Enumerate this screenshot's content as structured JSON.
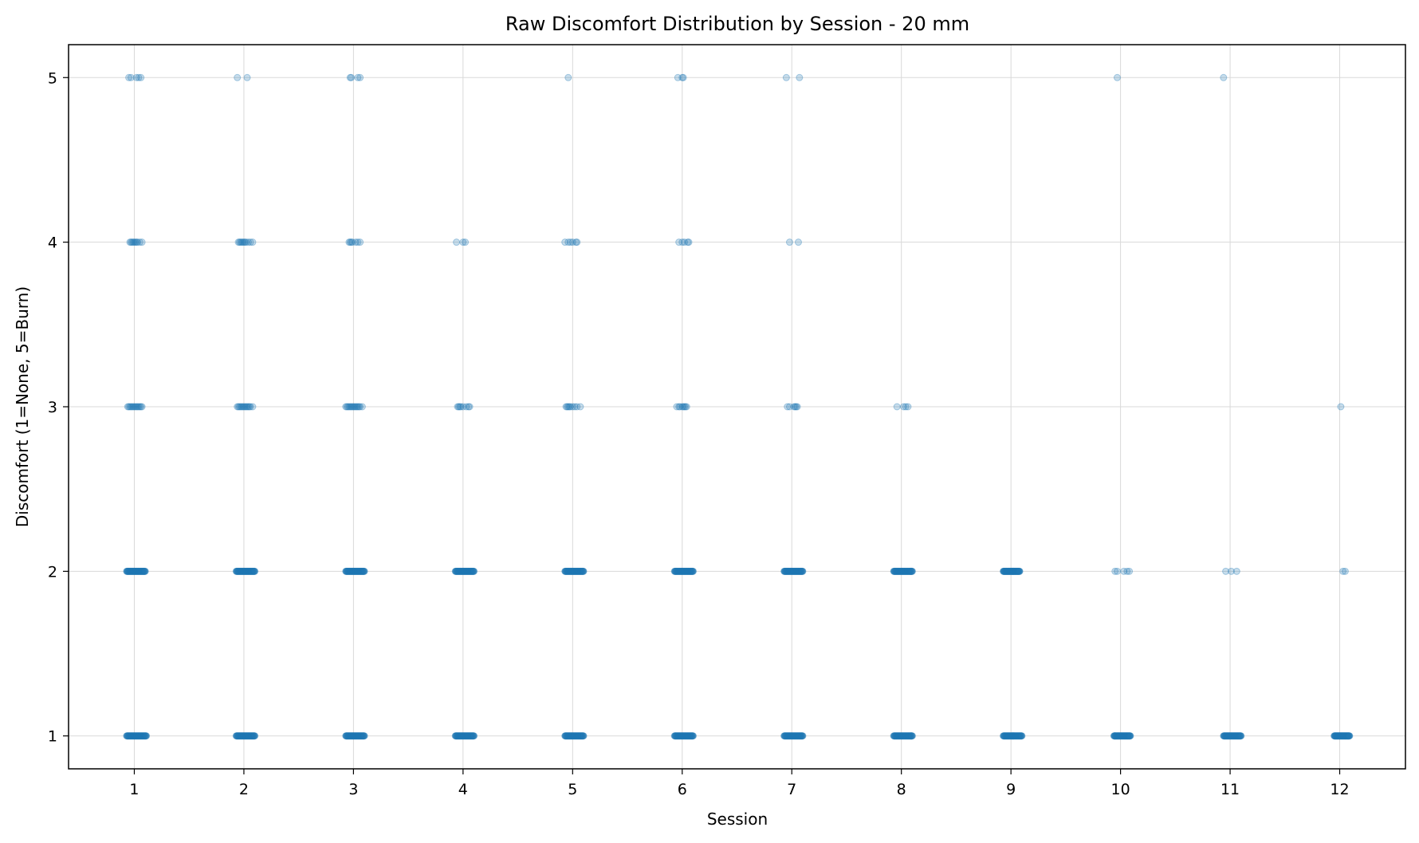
{
  "chart_data": {
    "type": "scatter",
    "title": "Raw Discomfort Distribution by Session - 20 mm",
    "xlabel": "Session",
    "ylabel": "Discomfort (1=None, 5=Burn)",
    "xlim": [
      0.4,
      12.6
    ],
    "ylim": [
      0.8,
      5.2
    ],
    "xticks": [
      "1",
      "2",
      "3",
      "4",
      "5",
      "6",
      "7",
      "8",
      "9",
      "10",
      "11",
      "12"
    ],
    "yticks": [
      "1",
      "2",
      "3",
      "4",
      "5"
    ],
    "grid": true,
    "point_color": "#1f77b4",
    "point_alpha": 0.25,
    "jitter_note_hidden": true,
    "points": [
      {
        "session": 1,
        "discomfort": 5,
        "x": [
          0.95,
          0.97,
          1.02,
          1.04,
          1.06
        ]
      },
      {
        "session": 1,
        "discomfort": 4,
        "x": [
          0.96,
          0.97,
          0.98,
          0.99,
          1.0,
          1.01,
          1.02,
          1.03,
          1.05,
          1.07
        ]
      },
      {
        "session": 1,
        "discomfort": 3,
        "x": [
          0.94,
          0.95,
          0.96,
          0.97,
          0.98,
          0.99,
          1.0,
          1.01,
          1.02,
          1.03,
          1.04,
          1.05,
          1.06,
          1.07
        ]
      },
      {
        "session": 1,
        "discomfort": 2,
        "dense": [
          0.93,
          1.1
        ]
      },
      {
        "session": 1,
        "discomfort": 1,
        "dense": [
          0.93,
          1.11
        ]
      },
      {
        "session": 2,
        "discomfort": 5,
        "x": [
          1.94,
          2.03
        ]
      },
      {
        "session": 2,
        "discomfort": 4,
        "x": [
          1.95,
          1.96,
          1.97,
          1.98,
          1.99,
          2.0,
          2.01,
          2.02,
          2.04,
          2.06,
          2.08
        ]
      },
      {
        "session": 2,
        "discomfort": 3,
        "x": [
          1.94,
          1.95,
          1.96,
          1.97,
          1.98,
          1.99,
          2.0,
          2.01,
          2.02,
          2.03,
          2.04,
          2.05,
          2.06,
          2.08
        ]
      },
      {
        "session": 2,
        "discomfort": 2,
        "dense": [
          1.93,
          2.1
        ]
      },
      {
        "session": 2,
        "discomfort": 1,
        "dense": [
          1.93,
          2.1
        ]
      },
      {
        "session": 3,
        "discomfort": 5,
        "x": [
          2.97,
          2.98,
          3.04,
          3.06
        ]
      },
      {
        "session": 3,
        "discomfort": 4,
        "x": [
          2.96,
          2.97,
          2.98,
          2.99,
          3.02,
          3.04,
          3.06
        ]
      },
      {
        "session": 3,
        "discomfort": 3,
        "x": [
          2.93,
          2.94,
          2.95,
          2.96,
          2.97,
          2.98,
          2.99,
          3.0,
          3.01,
          3.02,
          3.03,
          3.04,
          3.05,
          3.06,
          3.08
        ]
      },
      {
        "session": 3,
        "discomfort": 2,
        "dense": [
          2.93,
          3.1
        ]
      },
      {
        "session": 3,
        "discomfort": 1,
        "dense": [
          2.93,
          3.1
        ]
      },
      {
        "session": 4,
        "discomfort": 4,
        "x": [
          3.94,
          4.0,
          4.02
        ]
      },
      {
        "session": 4,
        "discomfort": 3,
        "x": [
          3.95,
          3.96,
          3.97,
          3.98,
          4.0,
          4.03,
          4.05,
          4.06
        ]
      },
      {
        "session": 4,
        "discomfort": 2,
        "dense": [
          3.93,
          4.1
        ]
      },
      {
        "session": 4,
        "discomfort": 1,
        "dense": [
          3.93,
          4.1
        ]
      },
      {
        "session": 5,
        "discomfort": 5,
        "x": [
          4.96
        ]
      },
      {
        "session": 5,
        "discomfort": 4,
        "x": [
          4.93,
          4.96,
          4.98,
          5.0,
          5.03,
          5.04
        ]
      },
      {
        "session": 5,
        "discomfort": 3,
        "x": [
          4.94,
          4.95,
          4.96,
          4.97,
          4.98,
          5.0,
          5.02,
          5.04,
          5.07
        ]
      },
      {
        "session": 5,
        "discomfort": 2,
        "dense": [
          4.93,
          5.1
        ]
      },
      {
        "session": 5,
        "discomfort": 1,
        "dense": [
          4.93,
          5.1
        ]
      },
      {
        "session": 6,
        "discomfort": 5,
        "x": [
          5.96,
          6.0,
          6.01
        ]
      },
      {
        "session": 6,
        "discomfort": 4,
        "x": [
          5.97,
          6.0,
          6.02,
          6.05,
          6.06
        ]
      },
      {
        "session": 6,
        "discomfort": 3,
        "x": [
          5.95,
          5.97,
          5.98,
          6.0,
          6.01,
          6.02,
          6.03,
          6.04
        ]
      },
      {
        "session": 6,
        "discomfort": 2,
        "dense": [
          5.93,
          6.1
        ]
      },
      {
        "session": 6,
        "discomfort": 1,
        "dense": [
          5.93,
          6.1
        ]
      },
      {
        "session": 7,
        "discomfort": 5,
        "x": [
          6.95,
          7.07
        ]
      },
      {
        "session": 7,
        "discomfort": 4,
        "x": [
          6.98,
          7.06
        ]
      },
      {
        "session": 7,
        "discomfort": 3,
        "x": [
          6.96,
          6.98,
          7.02,
          7.03,
          7.04,
          7.05
        ]
      },
      {
        "session": 7,
        "discomfort": 2,
        "dense": [
          6.93,
          7.1
        ]
      },
      {
        "session": 7,
        "discomfort": 1,
        "dense": [
          6.93,
          7.1
        ]
      },
      {
        "session": 8,
        "discomfort": 3,
        "x": [
          7.96,
          8.02,
          8.04,
          8.06
        ]
      },
      {
        "session": 8,
        "discomfort": 2,
        "dense": [
          7.93,
          8.1
        ]
      },
      {
        "session": 8,
        "discomfort": 1,
        "dense": [
          7.93,
          8.1
        ]
      },
      {
        "session": 9,
        "discomfort": 2,
        "dense": [
          8.93,
          9.08
        ]
      },
      {
        "session": 9,
        "discomfort": 1,
        "dense": [
          8.93,
          9.1
        ]
      },
      {
        "session": 10,
        "discomfort": 5,
        "x": [
          9.97
        ]
      },
      {
        "session": 10,
        "discomfort": 2,
        "x": [
          9.95,
          9.97,
          10.03,
          10.06,
          10.08
        ]
      },
      {
        "session": 10,
        "discomfort": 1,
        "dense": [
          9.94,
          10.09
        ]
      },
      {
        "session": 11,
        "discomfort": 5,
        "x": [
          10.94
        ]
      },
      {
        "session": 11,
        "discomfort": 2,
        "x": [
          10.96,
          11.01,
          11.06
        ]
      },
      {
        "session": 11,
        "discomfort": 1,
        "dense": [
          10.94,
          11.1
        ]
      },
      {
        "session": 12,
        "discomfort": 3,
        "x": [
          12.01
        ]
      },
      {
        "session": 12,
        "discomfort": 2,
        "x": [
          12.03,
          12.05
        ]
      },
      {
        "session": 12,
        "discomfort": 1,
        "dense": [
          11.95,
          12.09
        ]
      }
    ]
  }
}
